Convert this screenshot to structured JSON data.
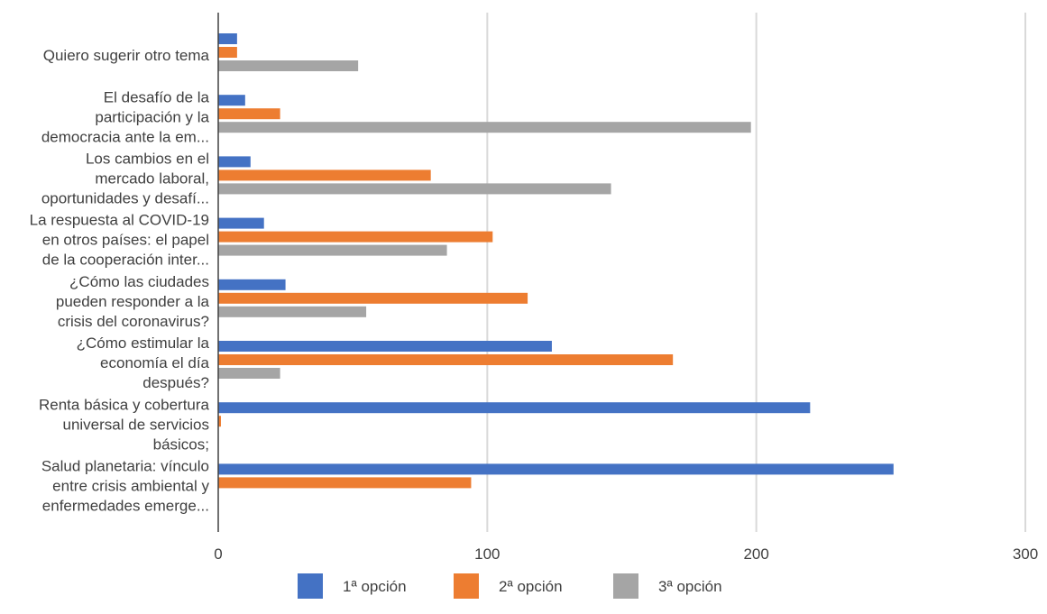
{
  "chart_data": {
    "type": "bar",
    "orientation": "horizontal",
    "categories": [
      [
        "Quiero sugerir otro tema"
      ],
      [
        "El desafío de la",
        "participación y la",
        "democracia ante la em..."
      ],
      [
        "Los cambios en el",
        "mercado laboral,",
        "oportunidades y desafí..."
      ],
      [
        "La respuesta al COVID-19",
        "en otros países: el papel",
        "de la cooperación inter..."
      ],
      [
        "¿Cómo las ciudades",
        "pueden responder a la",
        "crisis del coronavirus?"
      ],
      [
        "¿Cómo estimular la",
        "economía el día",
        "después?"
      ],
      [
        "Renta básica y cobertura",
        "universal de servicios",
        "básicos;"
      ],
      [
        "Salud planetaria: vínculo",
        "entre crisis ambiental y",
        "enfermedades emerge..."
      ]
    ],
    "series": [
      {
        "name": "1ª opción",
        "color": "#4472C4",
        "values": [
          7,
          10,
          12,
          17,
          25,
          124,
          220,
          251
        ]
      },
      {
        "name": "2ª opción",
        "color": "#ED7D31",
        "values": [
          7,
          23,
          79,
          102,
          115,
          169,
          1,
          94
        ]
      },
      {
        "name": "3ª opción",
        "color": "#A5A5A5",
        "values": [
          52,
          198,
          146,
          85,
          55,
          23,
          0,
          0
        ]
      }
    ],
    "xlim": [
      0,
      300
    ],
    "xticks": [
      "0",
      "100",
      "200",
      "300"
    ],
    "grid": "vertical",
    "legend_position": "bottom"
  }
}
